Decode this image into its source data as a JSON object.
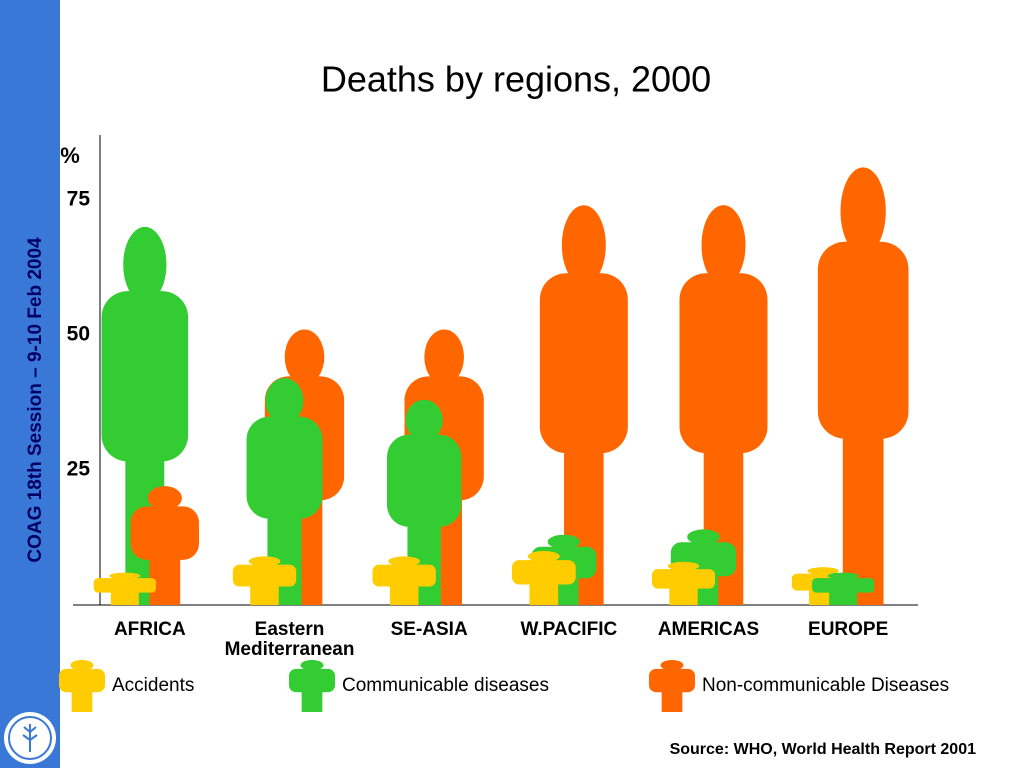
{
  "sidebar_text": "COAG 18th Session – 9-10 Feb 2004",
  "source": "Source: WHO, World Health Report 2001",
  "chart_data": {
    "type": "pictogram",
    "title": "Deaths by regions, 2000",
    "y_label": "%",
    "categories": [
      "AFRICA",
      "Eastern Mediterranean",
      "SE-ASIA",
      "W.PACIFIC",
      "AMERICAS",
      "EUROPE"
    ],
    "series": [
      {
        "name": "Accidents",
        "color": "#FFCC00",
        "values": [
          6,
          9,
          9,
          10,
          8,
          7
        ]
      },
      {
        "name": "Communicable diseases",
        "color": "#33CC33",
        "values": [
          70,
          42,
          38,
          13,
          14,
          6
        ]
      },
      {
        "name": "Non-communicable Diseases",
        "color": "#FF6600",
        "values": [
          22,
          51,
          51,
          74,
          74,
          81
        ]
      }
    ],
    "ylim": [
      0,
      87
    ],
    "yticks": [
      25,
      50,
      75
    ]
  }
}
